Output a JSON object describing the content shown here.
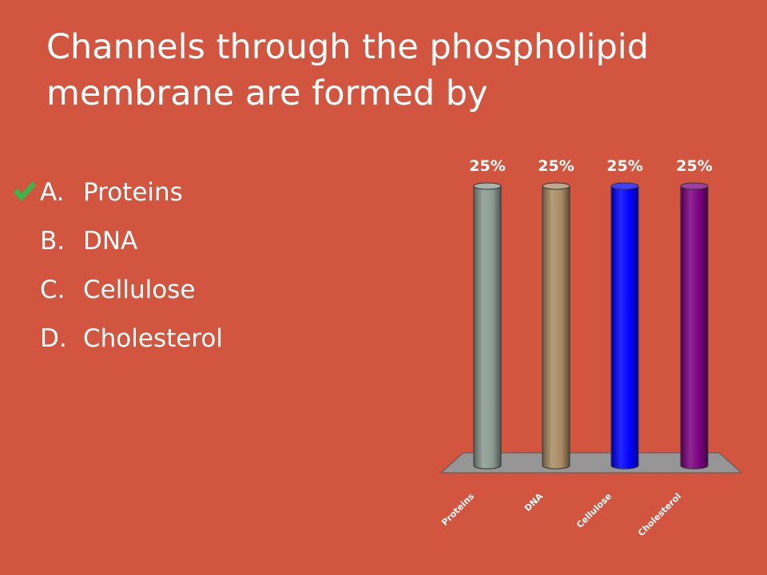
{
  "slide": {
    "title": "Channels through the phospholipid membrane are formed by",
    "correct_index": 0,
    "check_icon": "checkmark-icon",
    "check_color": "#3BB54A"
  },
  "answers": [
    {
      "letter": "A.",
      "text": "Proteins"
    },
    {
      "letter": "B.",
      "text": "DNA"
    },
    {
      "letter": "C.",
      "text": "Cellulose"
    },
    {
      "letter": "D.",
      "text": "Cholesterol"
    }
  ],
  "chart_data": {
    "type": "bar",
    "categories": [
      "Proteins",
      "DNA",
      "Cellulose",
      "Cholesterol"
    ],
    "values": [
      25,
      25,
      25,
      25
    ],
    "value_labels": [
      "25%",
      "25%",
      "25%",
      "25%"
    ],
    "colors": [
      "#8A9A91",
      "#A88A63",
      "#0000FF",
      "#7B0080"
    ],
    "floor_color": "#969696",
    "ylim": [
      0,
      25
    ],
    "grid": false,
    "legend": "none",
    "style": "3d-cylinder"
  }
}
